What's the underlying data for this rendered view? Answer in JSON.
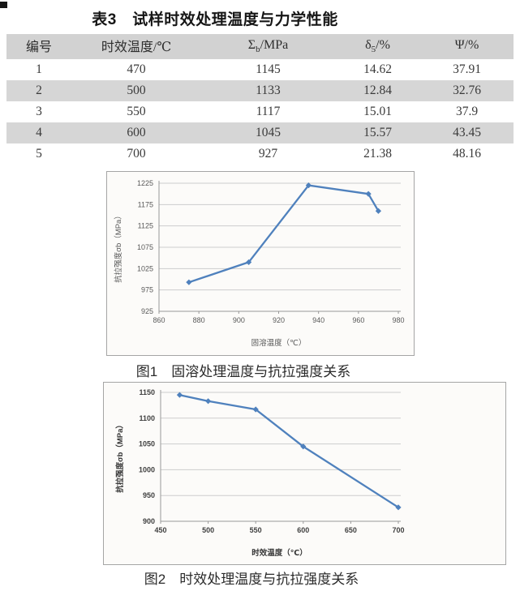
{
  "page": {
    "title": "表3　试样时效处理温度与力学性能"
  },
  "table": {
    "headers": [
      {
        "main": "编号",
        "sub": "",
        "rest": ""
      },
      {
        "main": "时效温度/℃",
        "sub": "",
        "rest": ""
      },
      {
        "main": "Σ",
        "sub": "b",
        "rest": "/MPa"
      },
      {
        "main": "δ",
        "sub": "5",
        "rest": "/%"
      },
      {
        "main": "Ψ",
        "sub": "",
        "rest": "/%"
      }
    ],
    "rows": [
      [
        "1",
        "470",
        "1145",
        "14.62",
        "37.91"
      ],
      [
        "2",
        "500",
        "1133",
        "12.84",
        "32.76"
      ],
      [
        "3",
        "550",
        "1117",
        "15.01",
        "37.9"
      ],
      [
        "4",
        "600",
        "1045",
        "15.57",
        "43.45"
      ],
      [
        "5",
        "700",
        "927",
        "21.38",
        "48.16"
      ]
    ]
  },
  "figures": [
    {
      "caption": "图1　固溶处理温度与抗拉强度关系"
    },
    {
      "caption": "图2　时效处理温度与抗拉强度关系"
    }
  ],
  "chart_data": [
    {
      "type": "line",
      "title": "图1 固溶处理温度与抗拉强度关系",
      "xlabel": "固溶温度（℃）",
      "ylabel": "抗拉强度σb（MPa）",
      "x": [
        875,
        905,
        935,
        965,
        970
      ],
      "y": [
        993,
        1040,
        1220,
        1200,
        1160
      ],
      "xlim": [
        860,
        980
      ],
      "ylim": [
        925,
        1225
      ],
      "x_ticks": [
        860,
        880,
        900,
        920,
        940,
        960,
        980
      ],
      "y_ticks": [
        925,
        975,
        1025,
        1075,
        1125,
        1175,
        1225
      ],
      "grid": "horizontal-only",
      "legend": "none",
      "line_color": "#4f81bd",
      "marker": "diamond"
    },
    {
      "type": "line",
      "title": "图2 时效处理温度与抗拉强度关系",
      "xlabel": "时效温度（℃）",
      "ylabel": "抗拉强度σb（MPa）",
      "x": [
        470,
        500,
        550,
        600,
        700
      ],
      "y": [
        1145,
        1133,
        1117,
        1045,
        927
      ],
      "xlim": [
        450,
        700
      ],
      "ylim": [
        900,
        1150
      ],
      "x_ticks": [
        450,
        500,
        550,
        600,
        650,
        700
      ],
      "y_ticks": [
        900,
        950,
        1000,
        1050,
        1100,
        1150
      ],
      "grid": "horizontal-only",
      "legend": "none",
      "line_color": "#4f81bd",
      "marker": "diamond"
    }
  ]
}
